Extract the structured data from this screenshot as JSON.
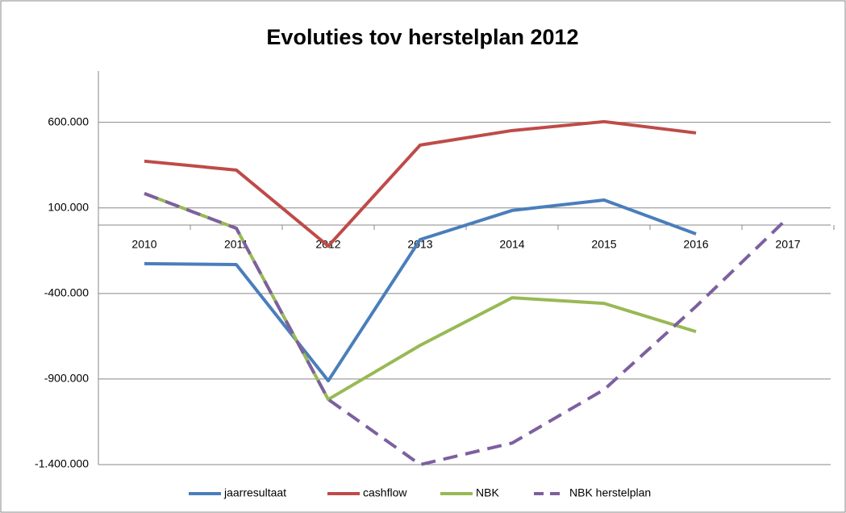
{
  "chart_data": {
    "type": "line",
    "title": "Evoluties tov herstelplan 2012",
    "categories": [
      "2010",
      "2011",
      "2012",
      "2013",
      "2014",
      "2015",
      "2016",
      "2017"
    ],
    "series": [
      {
        "name": "jaarresultaat",
        "color": "#4a7ebb",
        "values": [
          -226000,
          -231000,
          -910000,
          -85000,
          85000,
          146000,
          -52000,
          null
        ]
      },
      {
        "name": "cashflow",
        "color": "#be4b48",
        "values": [
          373000,
          321000,
          -123000,
          467000,
          552000,
          604000,
          538000,
          null
        ]
      },
      {
        "name": "NBK",
        "color": "#98b954",
        "values": [
          184000,
          -19000,
          -1019000,
          -703000,
          -425000,
          -458000,
          -623000,
          null
        ]
      },
      {
        "name": "NBK herstelplan",
        "color": "#7d60a0",
        "dashed": true,
        "values": [
          184000,
          -19000,
          -1019000,
          -1400000,
          -1274000,
          -962000,
          -476000,
          42000
        ]
      }
    ],
    "ylim": [
      -1400000,
      900000
    ],
    "yticks": [
      {
        "value": -1400000,
        "label": "-1.400.000"
      },
      {
        "value": -900000,
        "label": "-900.000"
      },
      {
        "value": -400000,
        "label": "-400.000"
      },
      {
        "value": 100000,
        "label": "100.000"
      },
      {
        "value": 600000,
        "label": "600.000"
      }
    ],
    "grid": true,
    "legend": "bottom"
  }
}
